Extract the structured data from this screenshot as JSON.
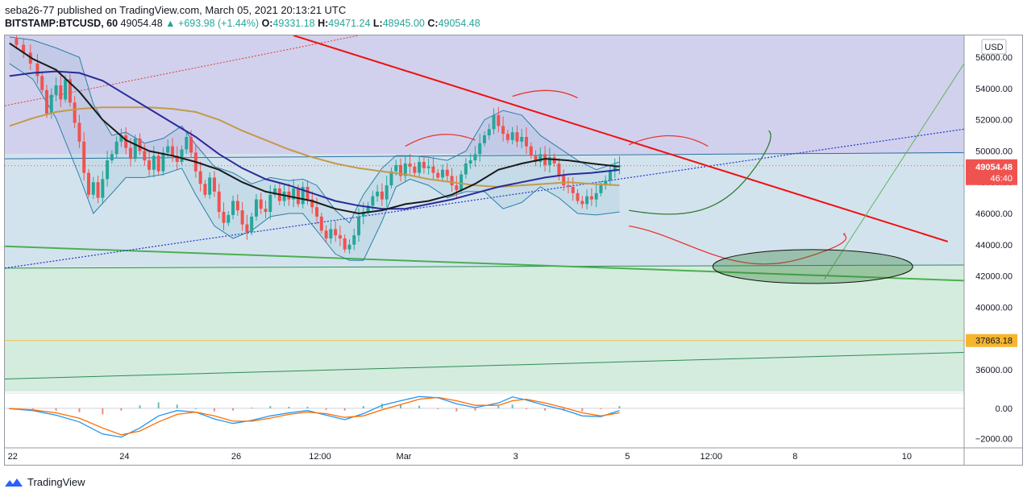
{
  "header": {
    "published": "seba26-77 published on TradingView.com, March 05, 2021 20:13:21 UTC",
    "symbol": "BITSTAMP:BTCUSD, 60",
    "last": "49054.48",
    "change": "▲ +693.98 (+1.44%)",
    "o_label": "O:",
    "o_val": "49331.18",
    "h_label": "H:",
    "h_val": "49471.24",
    "l_label": "L:",
    "l_val": "48945.00",
    "c_label": "C:",
    "c_val": "49054.48"
  },
  "footer": {
    "brand": "TradingView"
  },
  "colors": {
    "up": "#26a69a",
    "down": "#ef5350",
    "trend": "#ee1111",
    "ema": "#1a1a1a",
    "ma_blue": "#2a2a9a",
    "ma_tan": "#c49a4a",
    "bands": "#2b7fa8",
    "green_zone": "#4caf50",
    "price_label": "#ef5350",
    "level_label": "#f5b52d"
  },
  "chart_data": {
    "type": "candlestick",
    "currency": "USD",
    "y_ticks": [
      36000,
      38000,
      40000,
      42000,
      44000,
      46000,
      48000,
      50000,
      52000,
      54000,
      56000
    ],
    "y_tick_labels": [
      "36000.00",
      "38000.00",
      "40000.00",
      "42000.00",
      "44000.00",
      "46000.00",
      "48000.00",
      "50000.00",
      "52000.00",
      "54000.00",
      "56000.00"
    ],
    "ylim": [
      34600,
      57400
    ],
    "x_labels": [
      "22",
      "24",
      "26",
      "12:00",
      "Mar",
      "3",
      "5",
      "12:00",
      "8",
      "10"
    ],
    "x_label_hours": [
      0,
      48,
      96,
      132,
      168,
      216,
      264,
      300,
      336,
      384
    ],
    "x_range_hours": [
      -2,
      410
    ],
    "last_price": "49054.48",
    "countdown": "46:40",
    "level": {
      "value": 37863.18,
      "label": "37863.18"
    },
    "macd_ticks": [
      0,
      -2000
    ],
    "macd_tick_labels": [
      "0.00",
      "−2000.00"
    ],
    "macd_ylim": [
      -2400,
      900
    ],
    "price_path": [
      [
        0,
        57200
      ],
      [
        3,
        56800
      ],
      [
        6,
        56300
      ],
      [
        9,
        55600
      ],
      [
        12,
        54800
      ],
      [
        14,
        53900
      ],
      [
        16,
        52400
      ],
      [
        18,
        53600
      ],
      [
        20,
        54200
      ],
      [
        22,
        53300
      ],
      [
        24,
        54600
      ],
      [
        26,
        53100
      ],
      [
        28,
        51800
      ],
      [
        30,
        50600
      ],
      [
        32,
        48600
      ],
      [
        34,
        47200
      ],
      [
        36,
        48000
      ],
      [
        38,
        47000
      ],
      [
        40,
        48200
      ],
      [
        42,
        49400
      ],
      [
        44,
        49800
      ],
      [
        46,
        50600
      ],
      [
        48,
        51000
      ],
      [
        50,
        50200
      ],
      [
        52,
        49500
      ],
      [
        54,
        50800
      ],
      [
        56,
        50000
      ],
      [
        58,
        49400
      ],
      [
        60,
        48800
      ],
      [
        62,
        49700
      ],
      [
        64,
        48700
      ],
      [
        66,
        49900
      ],
      [
        68,
        50300
      ],
      [
        70,
        49700
      ],
      [
        72,
        49300
      ],
      [
        74,
        50100
      ],
      [
        76,
        50900
      ],
      [
        78,
        49900
      ],
      [
        80,
        48700
      ],
      [
        82,
        47900
      ],
      [
        84,
        47200
      ],
      [
        86,
        48300
      ],
      [
        88,
        47400
      ],
      [
        90,
        46100
      ],
      [
        92,
        45400
      ],
      [
        94,
        45900
      ],
      [
        96,
        46800
      ],
      [
        98,
        46200
      ],
      [
        100,
        45300
      ],
      [
        102,
        44800
      ],
      [
        104,
        45800
      ],
      [
        106,
        46900
      ],
      [
        108,
        46300
      ],
      [
        110,
        46100
      ],
      [
        112,
        47200
      ],
      [
        114,
        47600
      ],
      [
        116,
        46800
      ],
      [
        118,
        47400
      ],
      [
        120,
        46900
      ],
      [
        122,
        47600
      ],
      [
        124,
        46600
      ],
      [
        126,
        47700
      ],
      [
        128,
        46900
      ],
      [
        130,
        46400
      ],
      [
        132,
        45800
      ],
      [
        134,
        44900
      ],
      [
        136,
        44400
      ],
      [
        138,
        45000
      ],
      [
        140,
        44600
      ],
      [
        142,
        44400
      ],
      [
        144,
        43700
      ],
      [
        146,
        44000
      ],
      [
        148,
        44600
      ],
      [
        150,
        45800
      ],
      [
        152,
        46100
      ],
      [
        154,
        46500
      ],
      [
        156,
        47100
      ],
      [
        158,
        47400
      ],
      [
        160,
        46900
      ],
      [
        162,
        47800
      ],
      [
        164,
        48700
      ],
      [
        166,
        49100
      ],
      [
        168,
        48400
      ],
      [
        170,
        49200
      ],
      [
        172,
        49000
      ],
      [
        174,
        48600
      ],
      [
        176,
        49300
      ],
      [
        178,
        48900
      ],
      [
        180,
        49000
      ],
      [
        182,
        48600
      ],
      [
        184,
        48300
      ],
      [
        186,
        48800
      ],
      [
        188,
        48400
      ],
      [
        190,
        47800
      ],
      [
        192,
        47500
      ],
      [
        194,
        48500
      ],
      [
        196,
        49200
      ],
      [
        198,
        49400
      ],
      [
        200,
        49800
      ],
      [
        202,
        50500
      ],
      [
        204,
        51000
      ],
      [
        206,
        51400
      ],
      [
        208,
        52300
      ],
      [
        210,
        51600
      ],
      [
        212,
        51100
      ],
      [
        214,
        50700
      ],
      [
        216,
        51200
      ],
      [
        218,
        50600
      ],
      [
        220,
        50900
      ],
      [
        222,
        50300
      ],
      [
        224,
        49700
      ],
      [
        226,
        49300
      ],
      [
        228,
        49800
      ],
      [
        230,
        49100
      ],
      [
        232,
        49600
      ],
      [
        234,
        49200
      ],
      [
        236,
        48400
      ],
      [
        238,
        47800
      ],
      [
        240,
        47700
      ],
      [
        242,
        47300
      ],
      [
        244,
        46800
      ],
      [
        246,
        46600
      ],
      [
        248,
        47100
      ],
      [
        250,
        46900
      ],
      [
        252,
        47300
      ],
      [
        254,
        47800
      ],
      [
        256,
        48100
      ],
      [
        258,
        48700
      ],
      [
        260,
        49000
      ],
      [
        262,
        49054
      ]
    ],
    "ema50": [
      [
        0,
        56900
      ],
      [
        10,
        55900
      ],
      [
        20,
        55200
      ],
      [
        30,
        53800
      ],
      [
        40,
        52000
      ],
      [
        50,
        50700
      ],
      [
        60,
        50000
      ],
      [
        70,
        49700
      ],
      [
        80,
        49300
      ],
      [
        90,
        48800
      ],
      [
        100,
        48000
      ],
      [
        110,
        47400
      ],
      [
        120,
        47100
      ],
      [
        130,
        46800
      ],
      [
        140,
        46300
      ],
      [
        150,
        46000
      ],
      [
        160,
        46200
      ],
      [
        170,
        46600
      ],
      [
        180,
        46800
      ],
      [
        190,
        47200
      ],
      [
        200,
        47900
      ],
      [
        210,
        48800
      ],
      [
        220,
        49200
      ],
      [
        230,
        49500
      ],
      [
        240,
        49400
      ],
      [
        250,
        49200
      ],
      [
        262,
        49000
      ]
    ],
    "ma_blue": [
      [
        0,
        54800
      ],
      [
        10,
        55000
      ],
      [
        20,
        55100
      ],
      [
        30,
        55000
      ],
      [
        40,
        54500
      ],
      [
        50,
        53600
      ],
      [
        60,
        52700
      ],
      [
        70,
        51800
      ],
      [
        80,
        50900
      ],
      [
        90,
        49800
      ],
      [
        100,
        48900
      ],
      [
        110,
        48200
      ],
      [
        120,
        47800
      ],
      [
        130,
        47300
      ],
      [
        140,
        46800
      ],
      [
        150,
        46500
      ],
      [
        160,
        46300
      ],
      [
        170,
        46300
      ],
      [
        180,
        46600
      ],
      [
        190,
        46900
      ],
      [
        200,
        47300
      ],
      [
        210,
        47700
      ],
      [
        220,
        48000
      ],
      [
        230,
        48300
      ],
      [
        240,
        48500
      ],
      [
        250,
        48600
      ],
      [
        262,
        48800
      ]
    ],
    "ma_tan": [
      [
        0,
        51600
      ],
      [
        10,
        52100
      ],
      [
        20,
        52500
      ],
      [
        30,
        52700
      ],
      [
        40,
        52800
      ],
      [
        50,
        52800
      ],
      [
        60,
        52800
      ],
      [
        70,
        52700
      ],
      [
        80,
        52500
      ],
      [
        90,
        52000
      ],
      [
        100,
        51300
      ],
      [
        110,
        50700
      ],
      [
        120,
        50100
      ],
      [
        130,
        49600
      ],
      [
        140,
        49200
      ],
      [
        150,
        48900
      ],
      [
        160,
        48700
      ],
      [
        170,
        48500
      ],
      [
        180,
        48200
      ],
      [
        190,
        48000
      ],
      [
        200,
        47800
      ],
      [
        210,
        47700
      ],
      [
        220,
        47800
      ],
      [
        230,
        47900
      ],
      [
        240,
        48000
      ],
      [
        250,
        47900
      ],
      [
        262,
        47800
      ]
    ],
    "bb_upper": [
      [
        0,
        57300
      ],
      [
        10,
        57100
      ],
      [
        20,
        56600
      ],
      [
        30,
        56000
      ],
      [
        36,
        53000
      ],
      [
        44,
        51000
      ],
      [
        50,
        51200
      ],
      [
        58,
        50500
      ],
      [
        66,
        50800
      ],
      [
        74,
        51600
      ],
      [
        80,
        50400
      ],
      [
        88,
        49000
      ],
      [
        96,
        48600
      ],
      [
        104,
        47900
      ],
      [
        112,
        48300
      ],
      [
        120,
        48100
      ],
      [
        126,
        48200
      ],
      [
        132,
        47800
      ],
      [
        140,
        46200
      ],
      [
        146,
        45400
      ],
      [
        152,
        47200
      ],
      [
        160,
        48900
      ],
      [
        166,
        49700
      ],
      [
        172,
        49700
      ],
      [
        180,
        49600
      ],
      [
        188,
        49400
      ],
      [
        196,
        50000
      ],
      [
        204,
        52000
      ],
      [
        212,
        52600
      ],
      [
        220,
        52300
      ],
      [
        228,
        51000
      ],
      [
        236,
        50200
      ],
      [
        244,
        49400
      ],
      [
        252,
        48800
      ],
      [
        262,
        49300
      ]
    ],
    "bb_lower": [
      [
        0,
        55600
      ],
      [
        10,
        54600
      ],
      [
        20,
        52100
      ],
      [
        30,
        48400
      ],
      [
        36,
        46000
      ],
      [
        44,
        47300
      ],
      [
        50,
        48300
      ],
      [
        58,
        48300
      ],
      [
        66,
        48500
      ],
      [
        74,
        48900
      ],
      [
        80,
        47200
      ],
      [
        88,
        45200
      ],
      [
        96,
        44400
      ],
      [
        104,
        44900
      ],
      [
        112,
        45800
      ],
      [
        120,
        46000
      ],
      [
        126,
        46000
      ],
      [
        132,
        44900
      ],
      [
        140,
        43400
      ],
      [
        146,
        43000
      ],
      [
        152,
        43000
      ],
      [
        160,
        45500
      ],
      [
        166,
        47700
      ],
      [
        172,
        48200
      ],
      [
        180,
        47800
      ],
      [
        188,
        47000
      ],
      [
        196,
        47400
      ],
      [
        204,
        47400
      ],
      [
        212,
        46300
      ],
      [
        220,
        46700
      ],
      [
        228,
        47700
      ],
      [
        236,
        47000
      ],
      [
        244,
        46000
      ],
      [
        252,
        45900
      ],
      [
        262,
        46100
      ]
    ],
    "macd_line": [
      [
        0,
        -20
      ],
      [
        10,
        -150
      ],
      [
        20,
        -450
      ],
      [
        30,
        -900
      ],
      [
        40,
        -1700
      ],
      [
        48,
        -1900
      ],
      [
        56,
        -1300
      ],
      [
        64,
        -500
      ],
      [
        72,
        -150
      ],
      [
        80,
        -250
      ],
      [
        88,
        -700
      ],
      [
        96,
        -1000
      ],
      [
        104,
        -800
      ],
      [
        112,
        -500
      ],
      [
        120,
        -300
      ],
      [
        128,
        -150
      ],
      [
        136,
        -450
      ],
      [
        144,
        -750
      ],
      [
        152,
        -350
      ],
      [
        160,
        200
      ],
      [
        168,
        500
      ],
      [
        176,
        780
      ],
      [
        184,
        700
      ],
      [
        192,
        300
      ],
      [
        200,
        50
      ],
      [
        210,
        350
      ],
      [
        216,
        750
      ],
      [
        222,
        550
      ],
      [
        230,
        200
      ],
      [
        238,
        -100
      ],
      [
        246,
        -500
      ],
      [
        254,
        -550
      ],
      [
        262,
        -150
      ]
    ],
    "macd_signal": [
      [
        0,
        -10
      ],
      [
        10,
        -100
      ],
      [
        20,
        -300
      ],
      [
        30,
        -650
      ],
      [
        40,
        -1300
      ],
      [
        48,
        -1750
      ],
      [
        56,
        -1500
      ],
      [
        64,
        -900
      ],
      [
        72,
        -400
      ],
      [
        80,
        -250
      ],
      [
        88,
        -500
      ],
      [
        96,
        -850
      ],
      [
        104,
        -850
      ],
      [
        112,
        -650
      ],
      [
        120,
        -400
      ],
      [
        128,
        -250
      ],
      [
        136,
        -350
      ],
      [
        144,
        -600
      ],
      [
        152,
        -500
      ],
      [
        160,
        -100
      ],
      [
        168,
        250
      ],
      [
        176,
        600
      ],
      [
        184,
        720
      ],
      [
        192,
        500
      ],
      [
        200,
        200
      ],
      [
        210,
        200
      ],
      [
        216,
        500
      ],
      [
        222,
        600
      ],
      [
        230,
        350
      ],
      [
        238,
        50
      ],
      [
        246,
        -300
      ],
      [
        254,
        -500
      ],
      [
        262,
        -300
      ]
    ]
  }
}
